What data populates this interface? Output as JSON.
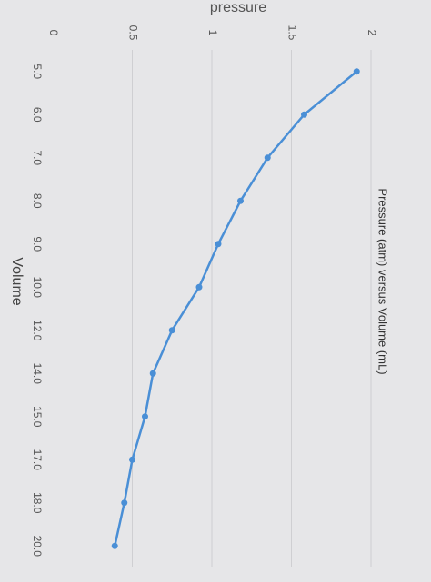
{
  "chart_data": {
    "type": "line",
    "title": "Pressure (atm) versus Volume (mL)",
    "x_label": "Volume",
    "y_label": "pressure",
    "categories": [
      "5.0",
      "6.0",
      "7.0",
      "8.0",
      "9.0",
      "10.0",
      "12.0",
      "14.0",
      "15.0",
      "17.0",
      "18.0",
      "20.0"
    ],
    "series": [
      {
        "name": "Pressure",
        "color": "#4a8fd6",
        "values": [
          1.91,
          1.58,
          1.35,
          1.18,
          1.04,
          0.92,
          0.75,
          0.63,
          0.58,
          0.5,
          0.45,
          0.39
        ]
      }
    ],
    "ylim": [
      0,
      2
    ],
    "yticks": [
      0,
      0.5,
      1,
      1.5,
      2
    ],
    "grid": true
  }
}
